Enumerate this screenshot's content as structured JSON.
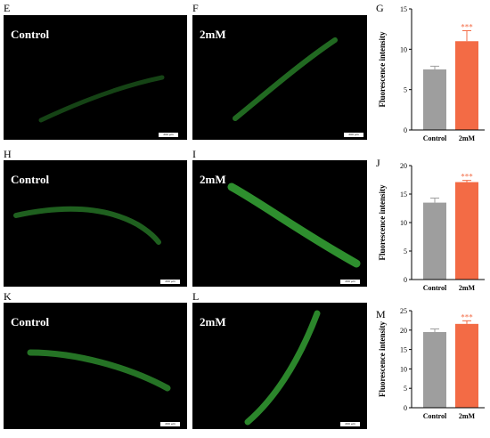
{
  "panels": [
    {
      "letter": "E",
      "title": "Control",
      "scale": "200 μm"
    },
    {
      "letter": "F",
      "title": "2mM",
      "scale": "200 μm"
    },
    {
      "letter": "H",
      "title": "Control",
      "scale": "200 μm"
    },
    {
      "letter": "I",
      "title": "2mM",
      "scale": "200 μm"
    },
    {
      "letter": "K",
      "title": "Control",
      "scale": "200 μm"
    },
    {
      "letter": "L",
      "title": "2mM",
      "scale": "200 μm"
    }
  ],
  "colors": {
    "control": "#9e9e9e",
    "treated": "#f36b45",
    "worm": "#3dbf3d"
  },
  "chart_data": [
    {
      "type": "bar",
      "letter": "G",
      "ylabel": "Fluorescence intensity",
      "categories": [
        "Control",
        "2mM"
      ],
      "values": [
        7.5,
        11
      ],
      "errors": [
        0.4,
        1.3
      ],
      "ylim": [
        0,
        15
      ],
      "yticks": [
        "0",
        "5",
        "10",
        "15"
      ],
      "significance": "***"
    },
    {
      "type": "bar",
      "letter": "J",
      "ylabel": "Fluorescence intensity",
      "categories": [
        "Control",
        "2mM"
      ],
      "values": [
        13.5,
        17.1
      ],
      "errors": [
        0.8,
        0.3
      ],
      "ylim": [
        0,
        20
      ],
      "yticks": [
        "0",
        "5",
        "10",
        "15",
        "20"
      ],
      "significance": "***"
    },
    {
      "type": "bar",
      "letter": "M",
      "ylabel": "Fluorescence intensity",
      "categories": [
        "Control",
        "2mM"
      ],
      "values": [
        19.5,
        21.6
      ],
      "errors": [
        0.8,
        0.8
      ],
      "ylim": [
        0,
        25
      ],
      "yticks": [
        "0",
        "5",
        "10",
        "15",
        "20",
        "25"
      ],
      "significance": "***"
    }
  ]
}
